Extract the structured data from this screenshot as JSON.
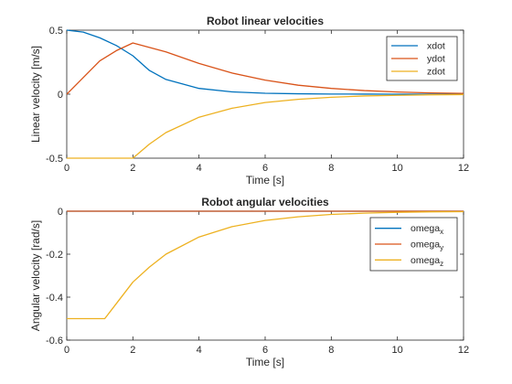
{
  "chart_data": [
    {
      "type": "line",
      "title": "Robot linear velocities",
      "xlabel": "Time [s]",
      "ylabel": "Linear velocity [m/s]",
      "xlim": [
        0,
        12
      ],
      "ylim": [
        -0.5,
        0.5
      ],
      "xticks": [
        "0",
        "2",
        "4",
        "6",
        "8",
        "10",
        "12"
      ],
      "yticks": [
        "-0.5",
        "0",
        "0.5"
      ],
      "grid": false,
      "legend_position": "top-right",
      "series": [
        {
          "name": "xdot",
          "color": "#0072BD",
          "x": [
            0,
            0.5,
            1,
            1.5,
            2,
            2.5,
            3,
            4,
            5,
            6,
            7,
            8,
            9,
            10,
            11,
            12
          ],
          "y": [
            0.5,
            0.485,
            0.44,
            0.38,
            0.3,
            0.185,
            0.115,
            0.045,
            0.018,
            0.007,
            0.003,
            0.001,
            0.0005,
            0.0002,
            0.0001,
            0
          ]
        },
        {
          "name": "ydot",
          "color": "#D95319",
          "x": [
            0,
            0.5,
            1,
            1.5,
            2,
            3,
            4,
            5,
            6,
            7,
            8,
            9,
            10,
            11,
            12
          ],
          "y": [
            0,
            0.13,
            0.26,
            0.34,
            0.4,
            0.33,
            0.24,
            0.165,
            0.11,
            0.07,
            0.045,
            0.028,
            0.017,
            0.01,
            0.006
          ]
        },
        {
          "name": "zdot",
          "color": "#EDB120",
          "x": [
            0,
            2,
            2.5,
            3,
            4,
            5,
            6,
            7,
            8,
            9,
            10,
            11,
            12
          ],
          "y": [
            -0.5,
            -0.5,
            -0.39,
            -0.3,
            -0.18,
            -0.11,
            -0.065,
            -0.04,
            -0.024,
            -0.014,
            -0.009,
            -0.005,
            -0.003
          ]
        }
      ]
    },
    {
      "type": "line",
      "title": "Robot angular velocities",
      "xlabel": "Time [s]",
      "ylabel": "Angular velocity [rad/s]",
      "xlim": [
        0,
        12
      ],
      "ylim": [
        -0.6,
        0
      ],
      "xticks": [
        "0",
        "2",
        "4",
        "6",
        "8",
        "10",
        "12"
      ],
      "yticks": [
        "-0.6",
        "-0.4",
        "-0.2",
        "0"
      ],
      "grid": false,
      "legend_position": "top-right",
      "series": [
        {
          "name": "omega",
          "subscript": "x",
          "color": "#0072BD",
          "x": [
            0,
            12
          ],
          "y": [
            0,
            0
          ]
        },
        {
          "name": "omega",
          "subscript": "y",
          "color": "#D95319",
          "x": [
            0,
            12
          ],
          "y": [
            0,
            0
          ]
        },
        {
          "name": "omega",
          "subscript": "z",
          "color": "#EDB120",
          "x": [
            0,
            1.15,
            1.5,
            2,
            2.5,
            3,
            4,
            5,
            6,
            7,
            8,
            9,
            10,
            11,
            12
          ],
          "y": [
            -0.5,
            -0.5,
            -0.43,
            -0.33,
            -0.26,
            -0.2,
            -0.12,
            -0.072,
            -0.043,
            -0.026,
            -0.015,
            -0.009,
            -0.005,
            -0.003,
            -0.002
          ]
        }
      ]
    }
  ]
}
